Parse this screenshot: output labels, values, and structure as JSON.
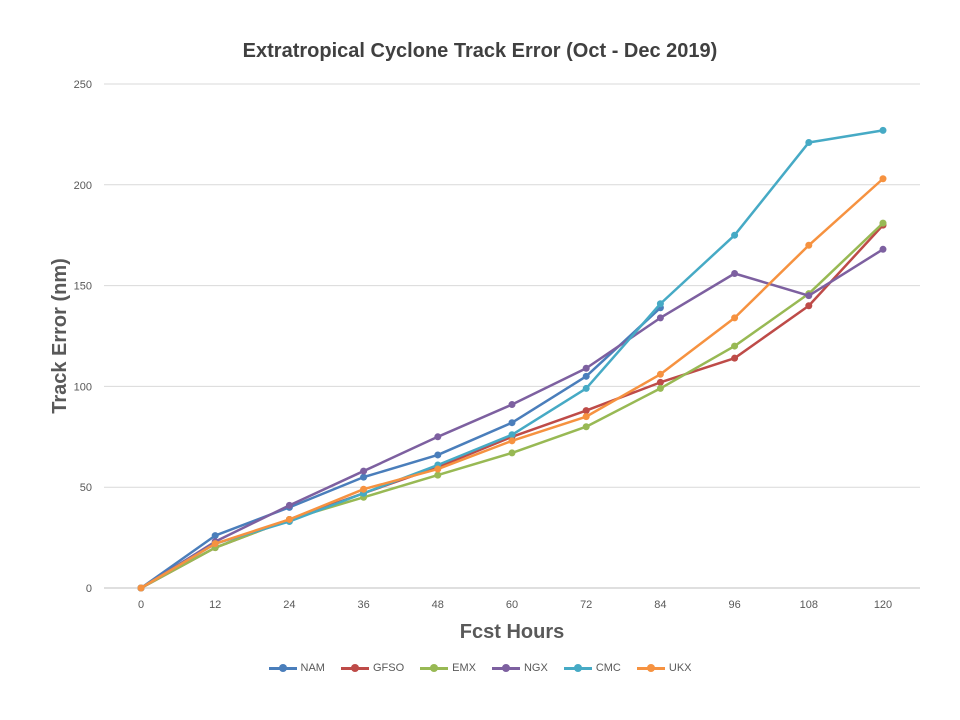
{
  "chart_data": {
    "type": "line",
    "title": "Extratropical Cyclone Track Error  (Oct - Dec 2019)",
    "xlabel": "Fcst Hours",
    "ylabel": "Track Error  (nm)",
    "x": [
      0,
      12,
      24,
      36,
      48,
      60,
      72,
      84,
      96,
      108,
      120
    ],
    "ylim": [
      0,
      250
    ],
    "yticks": [
      0,
      50,
      100,
      150,
      200,
      250
    ],
    "grid": true,
    "legend_position": "bottom",
    "series": [
      {
        "name": "NAM",
        "color": "#4a7ebb",
        "values": [
          0,
          26,
          40,
          55,
          66,
          82,
          105,
          139,
          null,
          null,
          null
        ]
      },
      {
        "name": "GFSO",
        "color": "#be4b48",
        "values": [
          0,
          20,
          34,
          47,
          60,
          75,
          88,
          102,
          114,
          140,
          180
        ]
      },
      {
        "name": "EMX",
        "color": "#98b954",
        "values": [
          0,
          20,
          34,
          45,
          56,
          67,
          80,
          99,
          120,
          146,
          181
        ]
      },
      {
        "name": "NGX",
        "color": "#7d60a0",
        "values": [
          0,
          23,
          41,
          58,
          75,
          91,
          109,
          134,
          156,
          145,
          168
        ]
      },
      {
        "name": "CMC",
        "color": "#46aac5",
        "values": [
          0,
          22,
          33,
          47,
          61,
          76,
          99,
          141,
          175,
          221,
          227
        ]
      },
      {
        "name": "UKX",
        "color": "#f69240",
        "values": [
          0,
          22,
          34,
          49,
          59,
          73,
          85,
          106,
          134,
          170,
          203
        ]
      }
    ]
  }
}
